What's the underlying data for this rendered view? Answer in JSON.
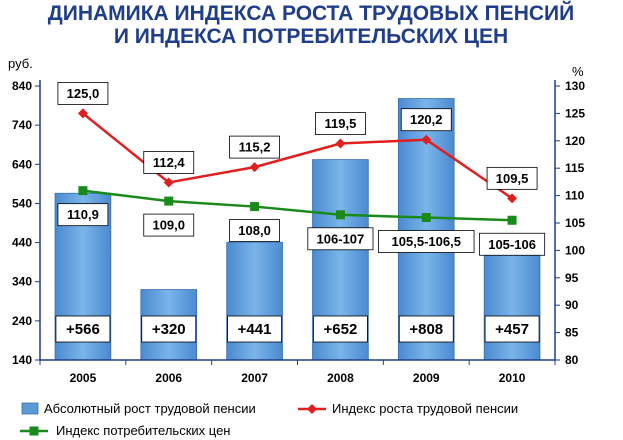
{
  "title_line1": "ДИНАМИКА ИНДЕКСА РОСТА ТРУДОВЫХ ПЕНСИЙ",
  "title_line2": "И ИНДЕКСА ПОТРЕБИТЕЛЬСКИХ ЦЕН",
  "left_unit": "руб.",
  "right_unit": "%",
  "colors": {
    "bar": "#5b9bd5",
    "pension_index": "#e02020",
    "cpi": "#1a8a1a",
    "axis": "#1f3d8a"
  },
  "chart_data": {
    "type": "bar+line",
    "categories": [
      "2005",
      "2006",
      "2007",
      "2008",
      "2009",
      "2010"
    ],
    "left_axis": {
      "min": 140,
      "max": 840,
      "ticks": [
        "140",
        "240",
        "340",
        "440",
        "540",
        "640",
        "740",
        "840"
      ]
    },
    "right_axis": {
      "min": 80,
      "max": 130,
      "ticks": [
        "80",
        "85",
        "90",
        "95",
        "100",
        "105",
        "110",
        "115",
        "120",
        "125",
        "130"
      ]
    },
    "series": [
      {
        "name": "Абсолютный рост трудовой пенсии",
        "type": "bar",
        "axis": "left",
        "values": [
          566,
          320,
          441,
          652,
          808,
          457
        ],
        "labels": [
          "+566",
          "+320",
          "+441",
          "+652",
          "+808",
          "+457"
        ]
      },
      {
        "name": "Индекс роста трудовой пенсии",
        "type": "line",
        "axis": "right",
        "values": [
          125.0,
          112.4,
          115.2,
          119.5,
          120.2,
          109.5
        ],
        "labels": [
          "125,0",
          "112,4",
          "115,2",
          "119,5",
          "120,2",
          "109,5"
        ]
      },
      {
        "name": "Индекс потребительских цен",
        "type": "line",
        "axis": "right",
        "values": [
          110.9,
          109.0,
          108.0,
          106.5,
          106.0,
          105.5
        ],
        "labels": [
          "110,9",
          "109,0",
          "108,0",
          "106-107",
          "105,5-106,5",
          "105-106"
        ]
      }
    ],
    "legend_position": "bottom"
  }
}
